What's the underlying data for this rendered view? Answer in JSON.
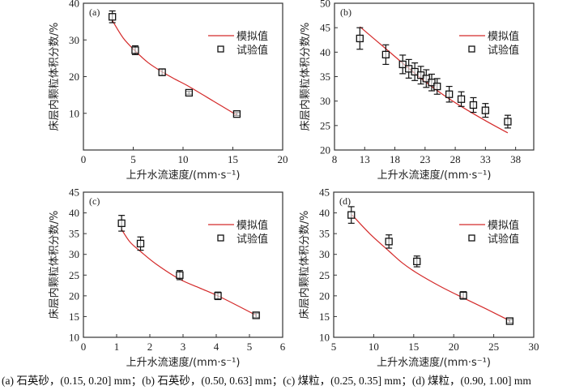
{
  "caption": "(a) 石英砂，(0.15, 0.20] mm；(b) 石英砂，(0.50, 0.63] mm；(c) 煤粒，(0.25, 0.35] mm；(d) 煤粒，(0.90, 1.00] mm",
  "colors": {
    "model_line": "#d42a2a",
    "marker": "#111111",
    "axis": "#333333"
  },
  "chart_data": [
    {
      "type": "scatter",
      "panel_label": "(a)",
      "xlabel": "上升水流速度/(mm·s⁻¹)",
      "ylabel": "床层内颗粒体积分数/%",
      "xlim": [
        0,
        20
      ],
      "ylim": [
        0,
        40
      ],
      "xticks": [
        0,
        5,
        10,
        15,
        20
      ],
      "yticks": [
        10,
        20,
        30,
        40
      ],
      "grid": false,
      "legend": {
        "position": "top-right",
        "entries": [
          "模拟值",
          "试验值"
        ]
      },
      "series": [
        {
          "name": "模拟值",
          "kind": "line",
          "x": [
            2.9,
            4.0,
            5.2,
            6.5,
            7.9,
            9.2,
            10.6,
            13.0,
            15.4
          ],
          "y": [
            35.3,
            30.5,
            27.0,
            23.8,
            21.3,
            19.3,
            17.3,
            13.4,
            9.5
          ]
        },
        {
          "name": "试验值",
          "kind": "scatter",
          "x": [
            2.9,
            5.2,
            7.9,
            10.6,
            15.4
          ],
          "y": [
            36.3,
            27.2,
            21.2,
            15.6,
            9.8
          ],
          "err": [
            1.6,
            1.2,
            0.9,
            0.4,
            0.4
          ]
        }
      ]
    },
    {
      "type": "scatter",
      "panel_label": "(b)",
      "xlabel": "上升水流速度/(mm·s⁻¹)",
      "ylabel": "床层内颗粒体积分数/%",
      "xlim": [
        8,
        41
      ],
      "ylim": [
        20,
        50
      ],
      "xticks": [
        8,
        13,
        18,
        23,
        28,
        33,
        38
      ],
      "yticks": [
        20,
        25,
        30,
        35,
        40,
        45,
        50
      ],
      "grid": false,
      "legend": {
        "position": "top-right",
        "entries": [
          "模拟值",
          "试验值"
        ]
      },
      "series": [
        {
          "name": "模拟值",
          "kind": "line",
          "x": [
            12.2,
            16.5,
            20.0,
            23.0,
            26.0,
            29.0,
            33.0,
            36.7
          ],
          "y": [
            45.2,
            40.7,
            37.0,
            34.0,
            31.3,
            28.9,
            26.0,
            23.5
          ]
        },
        {
          "name": "试验值",
          "kind": "scatter",
          "x": [
            12.2,
            16.5,
            19.3,
            20.3,
            21.3,
            22.3,
            23.2,
            24.1,
            25.0,
            27.0,
            29.0,
            31.0,
            33.0,
            36.7
          ],
          "y": [
            42.8,
            39.5,
            37.5,
            36.6,
            36.0,
            35.3,
            34.6,
            33.8,
            33.0,
            31.4,
            30.4,
            29.2,
            28.1,
            25.8
          ],
          "err": [
            2.2,
            2.0,
            1.9,
            1.9,
            1.8,
            1.8,
            1.8,
            1.7,
            1.6,
            1.6,
            1.5,
            1.5,
            1.4,
            1.3
          ]
        }
      ]
    },
    {
      "type": "scatter",
      "panel_label": "(c)",
      "xlabel": "上升水流速度/(mm·s⁻¹)",
      "ylabel": "床层内颗粒体积分数/%",
      "xlim": [
        0,
        6
      ],
      "ylim": [
        10,
        45
      ],
      "xticks": [
        0,
        1,
        2,
        3,
        4,
        5,
        6
      ],
      "yticks": [
        10,
        15,
        20,
        25,
        30,
        35,
        40,
        45
      ],
      "grid": false,
      "legend": {
        "position": "top-right",
        "entries": [
          "模拟值",
          "试验值"
        ]
      },
      "series": [
        {
          "name": "模拟值",
          "kind": "line",
          "x": [
            1.15,
            1.4,
            1.72,
            2.2,
            2.9,
            3.5,
            4.05,
            4.6,
            5.2
          ],
          "y": [
            36.0,
            33.0,
            30.7,
            27.6,
            24.0,
            21.9,
            20.0,
            17.8,
            15.3
          ]
        },
        {
          "name": "试验值",
          "kind": "scatter",
          "x": [
            1.15,
            1.72,
            2.9,
            4.05,
            5.2
          ],
          "y": [
            37.5,
            32.6,
            25.0,
            20.0,
            15.3
          ],
          "err": [
            1.9,
            1.6,
            1.1,
            0.9,
            0.5
          ]
        }
      ]
    },
    {
      "type": "scatter",
      "panel_label": "(d)",
      "xlabel": "上升水流速度/(mm·s⁻¹)",
      "ylabel": "床层内颗粒体积分数/%",
      "xlim": [
        5,
        30
      ],
      "ylim": [
        10,
        45
      ],
      "xticks": [
        5,
        10,
        15,
        20,
        25,
        30
      ],
      "yticks": [
        10,
        15,
        20,
        25,
        30,
        35,
        40,
        45
      ],
      "grid": false,
      "legend": {
        "position": "top-right",
        "entries": [
          "模拟值",
          "试验值"
        ]
      },
      "series": [
        {
          "name": "模拟值",
          "kind": "line",
          "x": [
            7.3,
            9.5,
            11.9,
            13.6,
            15.4,
            18.3,
            21.2,
            24.1,
            27.0
          ],
          "y": [
            39.5,
            35.0,
            30.8,
            27.9,
            25.5,
            22.3,
            19.5,
            16.8,
            14.0
          ]
        },
        {
          "name": "试验值",
          "kind": "scatter",
          "x": [
            7.2,
            11.9,
            15.4,
            21.2,
            27.0
          ],
          "y": [
            39.5,
            33.1,
            28.3,
            20.1,
            13.9
          ],
          "err": [
            2.0,
            1.6,
            1.3,
            0.9,
            0.4
          ]
        }
      ]
    }
  ]
}
